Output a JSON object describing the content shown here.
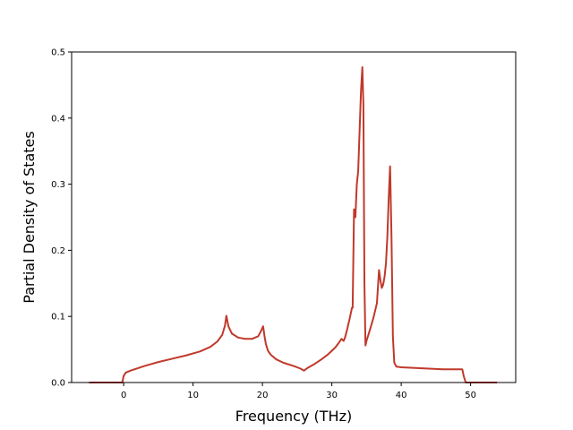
{
  "chart_data": {
    "type": "line",
    "title": "",
    "xlabel": "Frequency (THz)",
    "ylabel": "Partial Density of States",
    "xlim": [
      -7.5,
      56.5
    ],
    "ylim": [
      0.0,
      0.5
    ],
    "xticks": [
      0,
      10,
      20,
      30,
      40,
      50
    ],
    "yticks": [
      0.0,
      0.1,
      0.2,
      0.3,
      0.4,
      0.5
    ],
    "ytick_labels": [
      "0.0",
      "0.1",
      "0.2",
      "0.3",
      "0.4",
      "0.5"
    ],
    "grid": false,
    "line_color": "#c0392b",
    "series": [
      {
        "x": [
          -5.0,
          -0.2,
          0.0,
          0.3,
          1.0,
          3.0,
          5.0,
          7.0,
          9.0,
          11.0,
          12.5,
          13.5,
          14.2,
          14.6,
          14.8,
          15.1,
          15.6,
          16.5,
          17.5,
          18.5,
          19.4,
          19.8,
          20.1,
          20.3,
          20.5,
          20.8,
          21.2,
          22.0,
          23.0,
          24.5,
          25.5,
          26.0,
          26.5,
          27.5,
          28.5,
          29.5,
          30.5,
          31.0,
          31.4,
          31.7,
          31.9,
          32.2,
          32.6,
          32.9,
          33.0,
          33.2,
          33.4,
          33.6,
          33.8,
          34.0,
          34.2,
          34.4,
          34.55,
          34.7,
          34.85,
          35.0,
          35.5,
          36.0,
          36.5,
          36.8,
          37.0,
          37.2,
          37.4,
          37.6,
          37.8,
          38.0,
          38.2,
          38.4,
          38.6,
          38.8,
          39.0,
          39.3,
          40.0,
          42.0,
          44.0,
          46.0,
          48.0,
          48.8,
          49.0,
          49.3,
          50.0,
          52.0,
          53.8
        ],
        "y": [
          0.0,
          0.0,
          0.01,
          0.015,
          0.018,
          0.025,
          0.031,
          0.036,
          0.041,
          0.047,
          0.054,
          0.062,
          0.072,
          0.086,
          0.101,
          0.085,
          0.074,
          0.068,
          0.066,
          0.066,
          0.07,
          0.078,
          0.085,
          0.07,
          0.058,
          0.048,
          0.042,
          0.035,
          0.03,
          0.025,
          0.021,
          0.018,
          0.022,
          0.028,
          0.035,
          0.043,
          0.053,
          0.06,
          0.066,
          0.063,
          0.068,
          0.08,
          0.098,
          0.113,
          0.113,
          0.262,
          0.25,
          0.3,
          0.32,
          0.38,
          0.44,
          0.477,
          0.42,
          0.15,
          0.056,
          0.063,
          0.08,
          0.098,
          0.12,
          0.17,
          0.155,
          0.143,
          0.148,
          0.16,
          0.18,
          0.22,
          0.28,
          0.327,
          0.22,
          0.07,
          0.03,
          0.024,
          0.023,
          0.022,
          0.021,
          0.02,
          0.02,
          0.02,
          0.01,
          0.0,
          0.0,
          0.0,
          0.0
        ]
      }
    ]
  }
}
